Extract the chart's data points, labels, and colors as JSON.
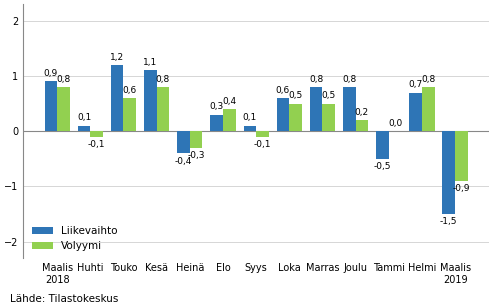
{
  "categories": [
    "Maalis\n2018",
    "Huhti",
    "Touko",
    "Kesä",
    "Heinä",
    "Elo",
    "Syys",
    "Loka",
    "Marras",
    "Joulu",
    "Tammi",
    "Helmi",
    "Maalis\n2019"
  ],
  "liikevaihto": [
    0.9,
    0.1,
    1.2,
    1.1,
    -0.4,
    0.3,
    0.1,
    0.6,
    0.8,
    0.8,
    -0.5,
    0.7,
    -1.5
  ],
  "volyymi": [
    0.8,
    -0.1,
    0.6,
    0.8,
    -0.3,
    0.4,
    -0.1,
    0.5,
    0.5,
    0.2,
    0.0,
    0.8,
    -0.9
  ],
  "color_liikevaihto": "#2e75b6",
  "color_volyymi": "#92d050",
  "ylim": [
    -2.3,
    2.3
  ],
  "yticks": [
    -2,
    -1,
    0,
    1,
    2
  ],
  "legend_liikevaihto": "Liikevaihto",
  "legend_volyymi": "Volyymi",
  "source_text": "Lähde: Tilastokeskus",
  "bar_width": 0.38,
  "label_fontsize": 6.5,
  "tick_fontsize": 7.0,
  "legend_fontsize": 7.5,
  "source_fontsize": 7.5
}
